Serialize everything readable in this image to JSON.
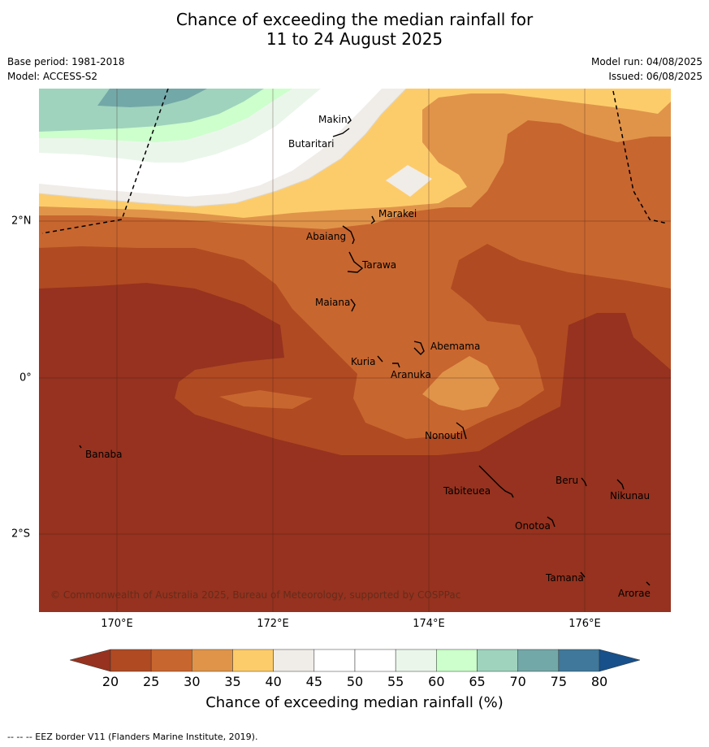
{
  "title_line1": "Chance of exceeding the median rainfall for",
  "title_line2": "11 to 24 August 2025",
  "meta": {
    "base_period": "Base period: 1981-2018",
    "model": "Model: ACCESS-S2",
    "model_run": "Model run: 04/08/2025",
    "issued": "Issued: 06/08/2025"
  },
  "map": {
    "copyright": "© Commonwealth of Australia 2025, Bureau of Meteorology, supported by COSPPac",
    "lon_labels": [
      "170°E",
      "172°E",
      "174°E",
      "176°E"
    ],
    "lat_labels": [
      "2°N",
      "0°",
      "2°S"
    ],
    "places": [
      {
        "name": "Makin"
      },
      {
        "name": "Butaritari"
      },
      {
        "name": "Marakei"
      },
      {
        "name": "Abaiang"
      },
      {
        "name": "Tarawa"
      },
      {
        "name": "Maiana"
      },
      {
        "name": "Abemama"
      },
      {
        "name": "Kuria"
      },
      {
        "name": "Aranuka"
      },
      {
        "name": "Nonouti"
      },
      {
        "name": "Banaba"
      },
      {
        "name": "Beru"
      },
      {
        "name": "Nikunau"
      },
      {
        "name": "Tabiteuea"
      },
      {
        "name": "Onotoa"
      },
      {
        "name": "Tamana"
      },
      {
        "name": "Arorae"
      }
    ]
  },
  "colorbar": {
    "ticks": [
      "20",
      "25",
      "30",
      "35",
      "40",
      "45",
      "50",
      "55",
      "60",
      "65",
      "70",
      "75",
      "80"
    ],
    "colors": [
      "#b04a22",
      "#c8662f",
      "#e0944a",
      "#fdcc6a",
      "#f0ece8",
      "#ffffff",
      "#ffffff",
      "#ebf6eb",
      "#ccffcc",
      "#9fd3bd",
      "#73a8a8",
      "#3f789a"
    ],
    "under_color": "#96321f",
    "over_color": "#17508a",
    "label": "Chance of exceeding median rainfall (%)"
  },
  "footer": "--  --  -- EEZ border V11 (Flanders Marine Institute, 2019)."
}
